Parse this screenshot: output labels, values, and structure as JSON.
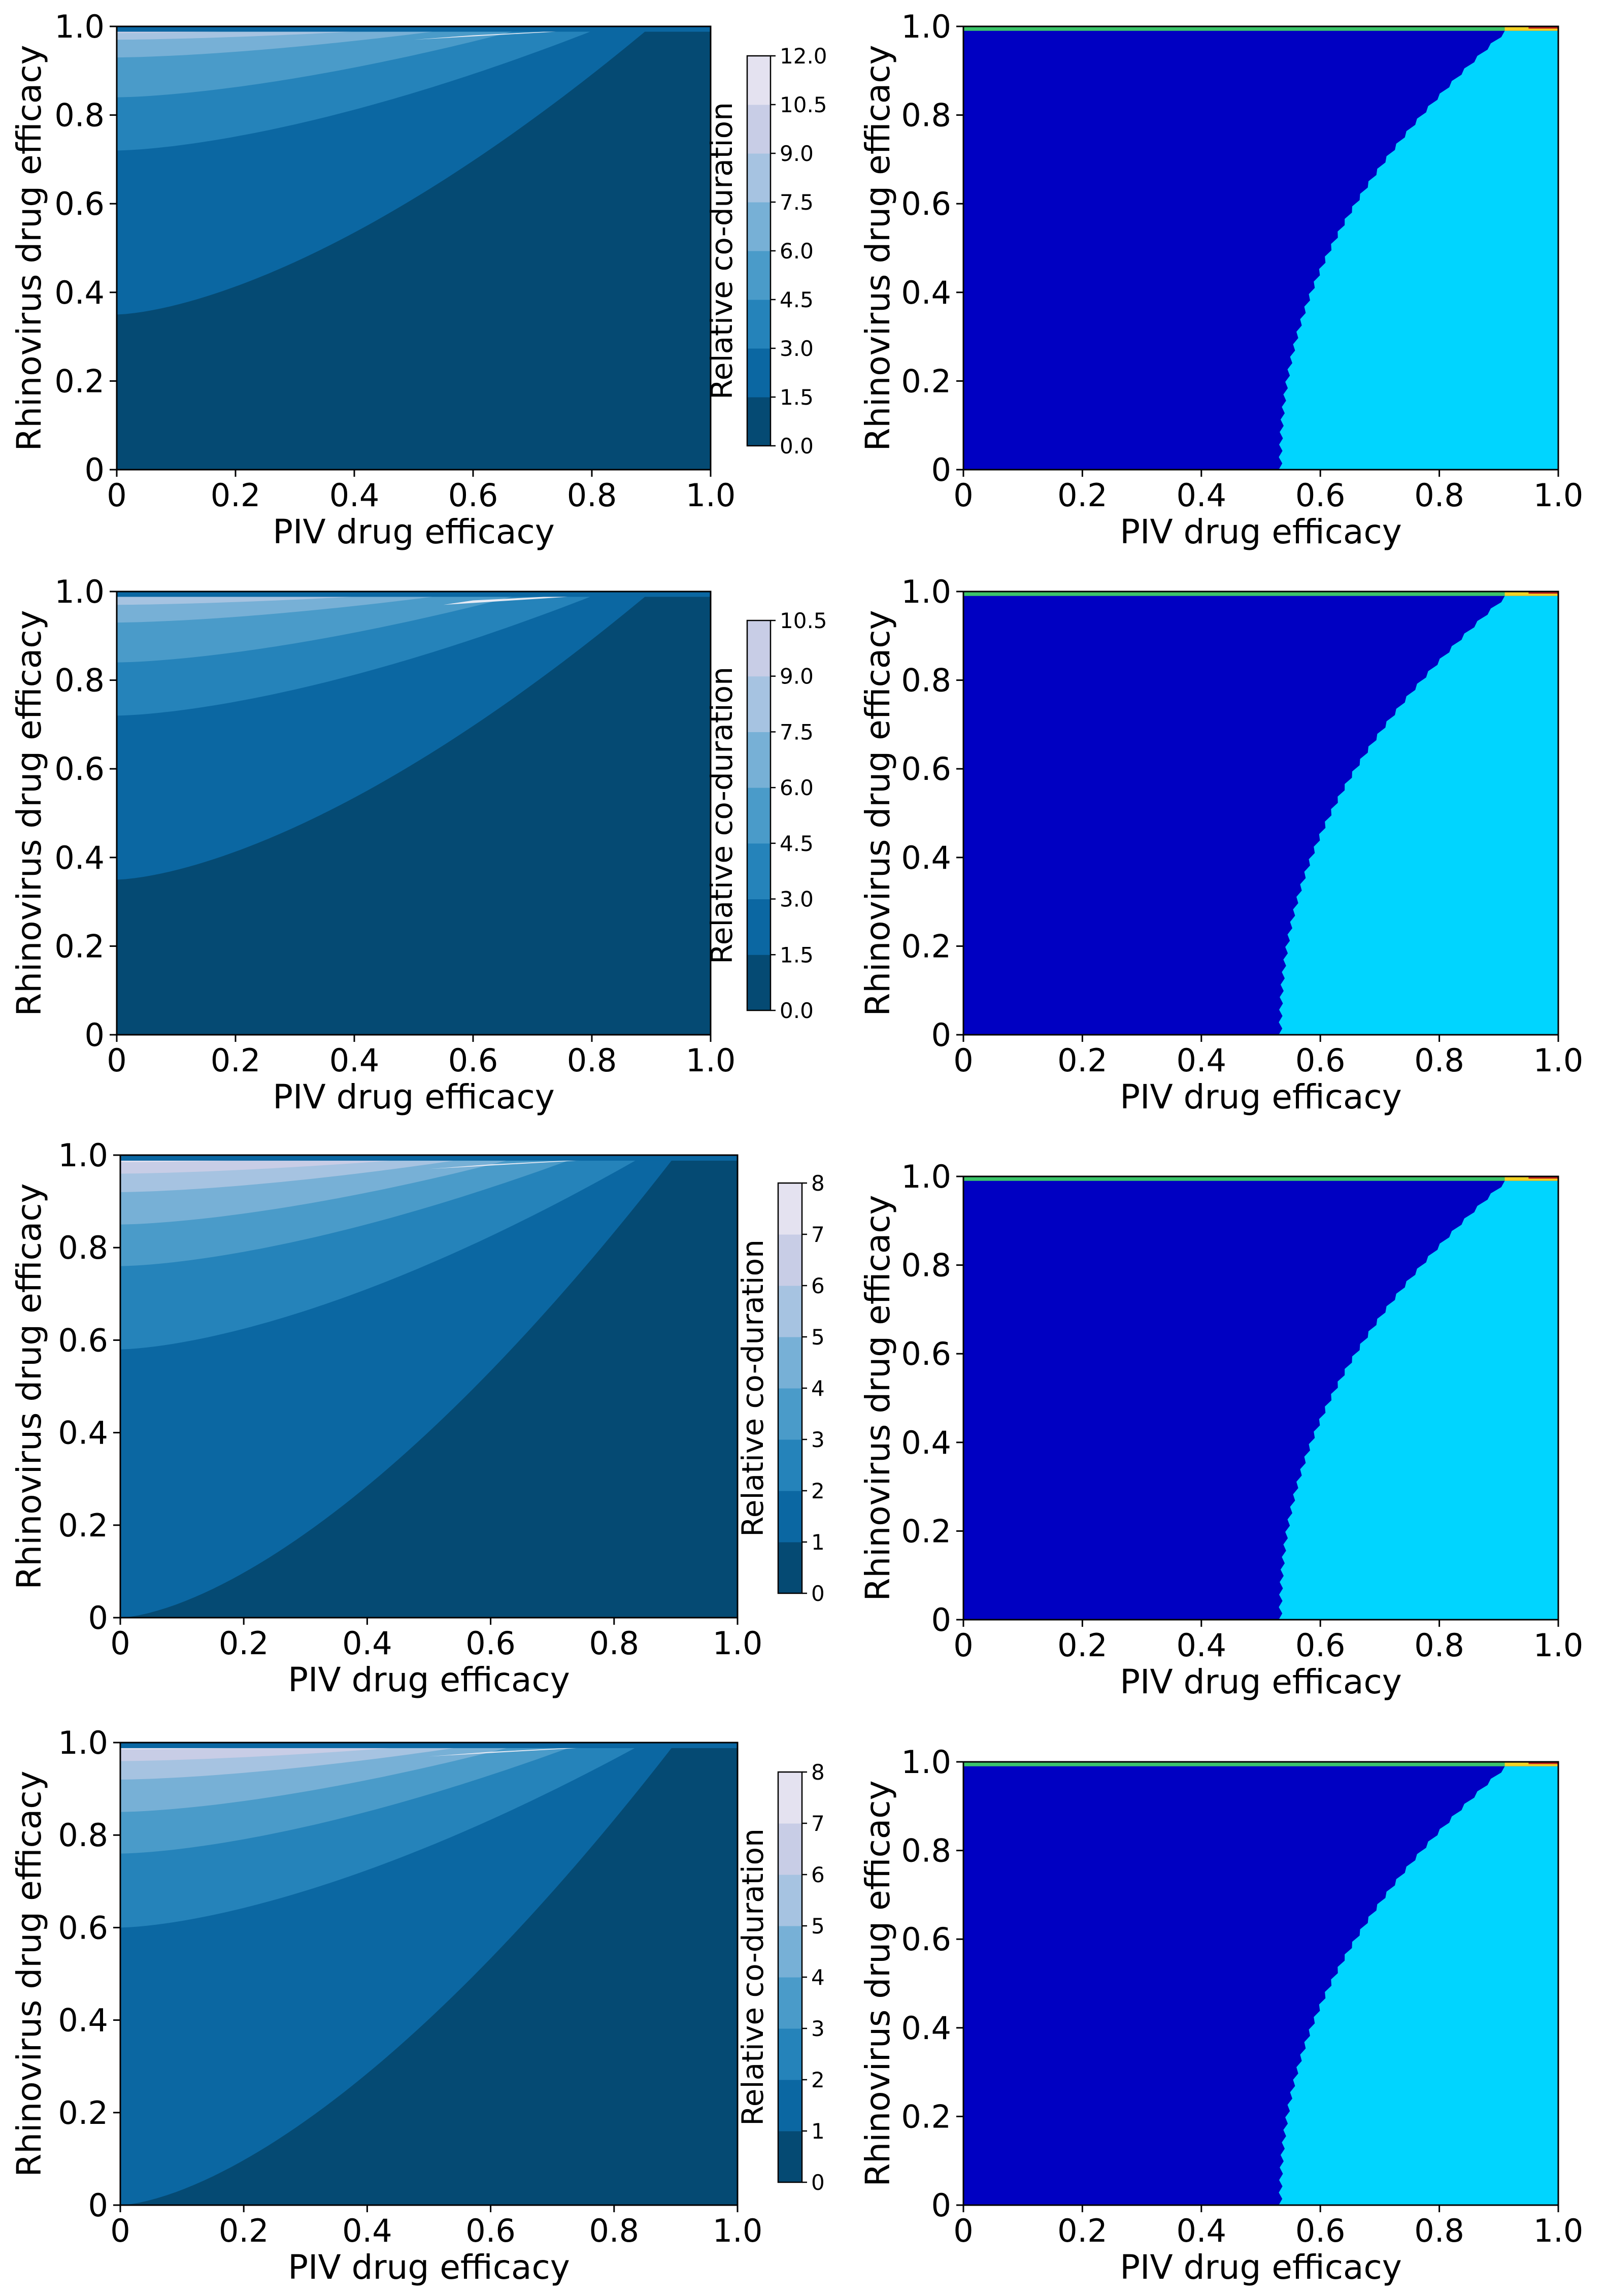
{
  "figure": {
    "colors": {
      "coduration_levels": [
        "#054a73",
        "#0b67a2",
        "#2583ba",
        "#4a9bc9",
        "#77b0d6",
        "#a6c3e1",
        "#c8cde6",
        "#e4e2f0",
        "#f8f4fa"
      ],
      "coduration_levels_9": [
        "#054a73",
        "#0b67a2",
        "#2583ba",
        "#4a9bc9",
        "#77b0d6",
        "#a6c3e1",
        "#c8cde6",
        "#e4e2f0",
        "#f8f4fa"
      ],
      "region_dark_blue": "#0000c2",
      "region_cyan": "#00d5ff",
      "top_band_green": "#3cc46a",
      "top_band_yellow": "#f2d224",
      "top_band_red": "#c0201c"
    }
  },
  "chart_data": [
    {
      "type": "contour",
      "panel": "row1-left",
      "xlabel": "PIV drug efficacy",
      "ylabel": "Rhinovirus drug efficacy",
      "xlim": [
        0,
        1.0
      ],
      "ylim": [
        0,
        1.0
      ],
      "xticks": [
        "0",
        "0.2",
        "0.4",
        "0.6",
        "0.8",
        "1.0"
      ],
      "yticks": [
        "0",
        "0.2",
        "0.4",
        "0.6",
        "0.8",
        "1.0"
      ],
      "colorbar": {
        "label": "Relative co-duration",
        "min": 0,
        "max": 12,
        "ticks": [
          "0.0",
          "1.5",
          "3.0",
          "4.5",
          "6.0",
          "7.5",
          "9.0",
          "10.5",
          "12.0"
        ]
      },
      "contour_boundaries": [
        {
          "level": 1.5,
          "y_at_x0": 0.35,
          "x_at_top": 0.9
        },
        {
          "level": 3.0,
          "y_at_x0": 0.72,
          "x_at_top": 0.82
        },
        {
          "level": 4.5,
          "y_at_x0": 0.84,
          "x_at_top": 0.7
        },
        {
          "level": 6.0,
          "y_at_x0": 0.93,
          "x_at_top": 0.6
        },
        {
          "level": 7.5,
          "y_at_x0": 0.97,
          "x_at_top": 0.55
        },
        {
          "level": 9.0,
          "y_at_x0": 0.985,
          "x_at_top": 0.5
        }
      ]
    },
    {
      "type": "region-map",
      "panel": "row1-right",
      "xlabel": "PIV drug efficacy",
      "ylabel": "Rhinovirus drug efficacy",
      "xlim": [
        0,
        1.0
      ],
      "ylim": [
        0,
        1.0
      ],
      "xticks": [
        "0",
        "0.2",
        "0.4",
        "0.6",
        "0.8",
        "1.0"
      ],
      "yticks": [
        "0",
        "0.2",
        "0.4",
        "0.6",
        "0.8",
        "1.0"
      ],
      "boundary_x_at_y0": 0.53,
      "boundary_x_at_top": 0.91,
      "top_band_y": 0.99
    },
    {
      "type": "contour",
      "panel": "row2-left",
      "xlabel": "PIV drug efficacy",
      "ylabel": "Rhinovirus drug efficacy",
      "xlim": [
        0,
        1.0
      ],
      "ylim": [
        0,
        1.0
      ],
      "xticks": [
        "0",
        "0.2",
        "0.4",
        "0.6",
        "0.8",
        "1.0"
      ],
      "yticks": [
        "0",
        "0.2",
        "0.4",
        "0.6",
        "0.8",
        "1.0"
      ],
      "colorbar": {
        "label": "Relative co-duration",
        "min": 0,
        "max": 10.5,
        "ticks": [
          "0.0",
          "1.5",
          "3.0",
          "4.5",
          "6.0",
          "7.5",
          "9.0",
          "10.5"
        ]
      },
      "contour_boundaries": [
        {
          "level": 1.5,
          "y_at_x0": 0.35,
          "x_at_top": 0.9
        },
        {
          "level": 3.0,
          "y_at_x0": 0.72,
          "x_at_top": 0.82
        },
        {
          "level": 4.5,
          "y_at_x0": 0.84,
          "x_at_top": 0.7
        },
        {
          "level": 6.0,
          "y_at_x0": 0.93,
          "x_at_top": 0.6
        },
        {
          "level": 7.5,
          "y_at_x0": 0.97,
          "x_at_top": 0.55
        }
      ]
    },
    {
      "type": "region-map",
      "panel": "row2-right",
      "xlabel": "PIV drug efficacy",
      "ylabel": "Rhinovirus drug efficacy",
      "xlim": [
        0,
        1.0
      ],
      "ylim": [
        0,
        1.0
      ],
      "xticks": [
        "0",
        "0.2",
        "0.4",
        "0.6",
        "0.8",
        "1.0"
      ],
      "yticks": [
        "0",
        "0.2",
        "0.4",
        "0.6",
        "0.8",
        "1.0"
      ],
      "boundary_x_at_y0": 0.53,
      "boundary_x_at_top": 0.91,
      "top_band_y": 0.99
    },
    {
      "type": "contour",
      "panel": "row3-left",
      "xlabel": "PIV drug efficacy",
      "ylabel": "Rhinovirus drug efficacy",
      "xlim": [
        0,
        1.0
      ],
      "ylim": [
        0,
        1.0
      ],
      "xticks": [
        "0",
        "0.2",
        "0.4",
        "0.6",
        "0.8",
        "1.0"
      ],
      "yticks": [
        "0",
        "0.2",
        "0.4",
        "0.6",
        "0.8",
        "1.0"
      ],
      "colorbar": {
        "label": "Relative co-duration",
        "min": 0,
        "max": 8,
        "ticks": [
          "0",
          "1",
          "2",
          "3",
          "4",
          "5",
          "6",
          "7",
          "8"
        ]
      },
      "contour_boundaries": [
        {
          "level": 1,
          "y_at_x0": 0.0,
          "x_at_top": 0.9
        },
        {
          "level": 2,
          "y_at_x0": 0.58,
          "x_at_top": 0.85
        },
        {
          "level": 3,
          "y_at_x0": 0.76,
          "x_at_top": 0.75
        },
        {
          "level": 4,
          "y_at_x0": 0.85,
          "x_at_top": 0.66
        },
        {
          "level": 5,
          "y_at_x0": 0.92,
          "x_at_top": 0.6
        },
        {
          "level": 6,
          "y_at_x0": 0.96,
          "x_at_top": 0.55
        },
        {
          "level": 7,
          "y_at_x0": 0.985,
          "x_at_top": 0.5
        }
      ]
    },
    {
      "type": "region-map",
      "panel": "row3-right",
      "xlabel": "PIV drug efficacy",
      "ylabel": "Rhinovirus drug efficacy",
      "xlim": [
        0,
        1.0
      ],
      "ylim": [
        0,
        1.0
      ],
      "xticks": [
        "0",
        "0.2",
        "0.4",
        "0.6",
        "0.8",
        "1.0"
      ],
      "yticks": [
        "0",
        "0.2",
        "0.4",
        "0.6",
        "0.8",
        "1.0"
      ],
      "boundary_x_at_y0": 0.53,
      "boundary_x_at_top": 0.91,
      "top_band_y": 0.99
    },
    {
      "type": "contour",
      "panel": "row4-left",
      "xlabel": "PIV drug efficacy",
      "ylabel": "Rhinovirus drug efficacy",
      "xlim": [
        0,
        1.0
      ],
      "ylim": [
        0,
        1.0
      ],
      "xticks": [
        "0",
        "0.2",
        "0.4",
        "0.6",
        "0.8",
        "1.0"
      ],
      "yticks": [
        "0",
        "0.2",
        "0.4",
        "0.6",
        "0.8",
        "1.0"
      ],
      "colorbar": {
        "label": "Relative co-duration",
        "min": 0,
        "max": 8,
        "ticks": [
          "0",
          "1",
          "2",
          "3",
          "4",
          "5",
          "6",
          "7",
          "8"
        ]
      },
      "contour_boundaries": [
        {
          "level": 1,
          "y_at_x0": 0.0,
          "x_at_top": 0.9
        },
        {
          "level": 2,
          "y_at_x0": 0.6,
          "x_at_top": 0.85
        },
        {
          "level": 3,
          "y_at_x0": 0.76,
          "x_at_top": 0.75
        },
        {
          "level": 4,
          "y_at_x0": 0.85,
          "x_at_top": 0.66
        },
        {
          "level": 5,
          "y_at_x0": 0.92,
          "x_at_top": 0.6
        },
        {
          "level": 6,
          "y_at_x0": 0.96,
          "x_at_top": 0.55
        },
        {
          "level": 7,
          "y_at_x0": 0.985,
          "x_at_top": 0.5
        }
      ]
    },
    {
      "type": "region-map",
      "panel": "row4-right",
      "xlabel": "PIV drug efficacy",
      "ylabel": "Rhinovirus drug efficacy",
      "xlim": [
        0,
        1.0
      ],
      "ylim": [
        0,
        1.0
      ],
      "xticks": [
        "0",
        "0.2",
        "0.4",
        "0.6",
        "0.8",
        "1.0"
      ],
      "yticks": [
        "0",
        "0.2",
        "0.4",
        "0.6",
        "0.8",
        "1.0"
      ],
      "boundary_x_at_y0": 0.53,
      "boundary_x_at_top": 0.91,
      "top_band_y": 0.99
    }
  ]
}
